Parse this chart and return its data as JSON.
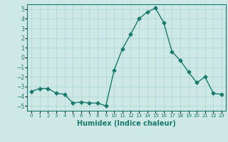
{
  "x": [
    0,
    1,
    2,
    3,
    4,
    5,
    6,
    7,
    8,
    9,
    10,
    11,
    12,
    13,
    14,
    15,
    16,
    17,
    18,
    19,
    20,
    21,
    22,
    23
  ],
  "y": [
    -3.5,
    -3.2,
    -3.2,
    -3.7,
    -3.8,
    -4.7,
    -4.6,
    -4.7,
    -4.7,
    -5.0,
    -1.3,
    0.9,
    2.4,
    4.0,
    4.7,
    5.1,
    3.6,
    0.6,
    -0.3,
    -1.5,
    -2.6,
    -2.0,
    -3.7,
    -3.8
  ],
  "line_color": "#1a7a6e",
  "marker": "D",
  "markersize": 2.5,
  "linewidth": 1.0,
  "bg_color": "#cde8e5",
  "grid_color": "#a8d4d0",
  "xlabel": "Humidex (Indice chaleur)",
  "xlim": [
    -0.5,
    23.5
  ],
  "ylim": [
    -5.5,
    5.5
  ],
  "yticks": [
    -5,
    -4,
    -3,
    -2,
    -1,
    0,
    1,
    2,
    3,
    4,
    5
  ],
  "xtick_fontsize": 5.0,
  "ytick_fontsize": 5.5,
  "xlabel_fontsize": 7.0
}
